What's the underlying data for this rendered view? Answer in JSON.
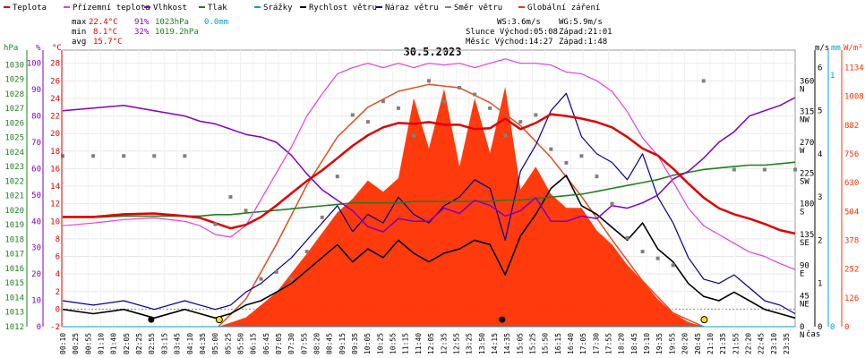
{
  "legend": [
    {
      "label": "Teplota",
      "color": "#e00000"
    },
    {
      "label": "Přízemní teplota",
      "color": "#e040e0"
    },
    {
      "label": "Vlhkost",
      "color": "#8000c0"
    },
    {
      "label": "Tlak",
      "color": "#208020"
    },
    {
      "label": "Srážky",
      "color": "#00a0d0"
    },
    {
      "label": "Rychlost větru",
      "color": "#000000"
    },
    {
      "label": "Náraz větru",
      "color": "#000090"
    },
    {
      "label": "Směr větru",
      "color": "#808080"
    },
    {
      "label": "Globální záření",
      "color": "#ff3000"
    }
  ],
  "stats": {
    "max": {
      "label": "max",
      "temp": "22.4°C",
      "hum": "91%",
      "press": "1023hPa",
      "rain": "0.0mm"
    },
    "min": {
      "label": "min",
      "temp": "8.1°C",
      "hum": "32%",
      "press": "1019.2hPa"
    },
    "avg": {
      "label": "avg",
      "temp": "15.7°C"
    }
  },
  "info": {
    "ws": "WS:3.6m/s",
    "wg": "WG:5.9m/s",
    "sun": "Slunce Východ:05:08",
    "sunset": "Západ:21:01",
    "moon": "Měsíc Východ:14:27",
    "moonset": "Západ:1:48"
  },
  "colors": {
    "temp": "#e00000",
    "dew": "#e040e0",
    "hum": "#8000c0",
    "press": "#208020",
    "rain": "#00a0d0",
    "wind": "#000000",
    "gust": "#000090",
    "dir": "#808080",
    "solar": "#ff3000",
    "solar_max": "#e05020"
  },
  "axes": {
    "hpa_unit": "hPa",
    "pct_unit": "%",
    "c_unit": "°C",
    "ms_unit": "m/s",
    "mm_unit": "mm",
    "wm2_unit": "W/m²",
    "time_label": "čas"
  },
  "chart_data": {
    "type": "line",
    "title": "30.5.2023",
    "x_labels": [
      "00:10",
      "00:25",
      "00:55",
      "01:10",
      "01:40",
      "02:05",
      "02:25",
      "02:55",
      "03:15",
      "03:45",
      "04:10",
      "04:35",
      "05:00",
      "05:25",
      "05:50",
      "06:15",
      "06:45",
      "07:05",
      "07:30",
      "07:55",
      "08:20",
      "08:45",
      "09:15",
      "09:35",
      "10:05",
      "10:25",
      "10:55",
      "11:15",
      "11:40",
      "12:05",
      "12:35",
      "12:55",
      "13:25",
      "13:50",
      "14:15",
      "14:35",
      "15:05",
      "15:25",
      "15:50",
      "16:15",
      "16:40",
      "17:05",
      "17:30",
      "17:55",
      "18:20",
      "18:45",
      "19:10",
      "19:35",
      "19:55",
      "20:20",
      "20:45",
      "21:10",
      "21:35",
      "21:55",
      "22:20",
      "22:45",
      "23:10",
      "23:35"
    ],
    "axes_ticks": {
      "hpa": [
        1012,
        1013,
        1014,
        1015,
        1016,
        1017,
        1018,
        1019,
        1020,
        1021,
        1022,
        1023,
        1024,
        1025,
        1026,
        1027,
        1028,
        1029,
        1030
      ],
      "pct": [
        0,
        10,
        20,
        30,
        40,
        50,
        60,
        70,
        80,
        90,
        100
      ],
      "celsius": [
        -2,
        0,
        2,
        4,
        6,
        8,
        10,
        12,
        14,
        16,
        18,
        20,
        22,
        24,
        26,
        28
      ],
      "direction_deg": [
        0,
        45,
        90,
        135,
        180,
        225,
        270,
        315,
        360
      ],
      "direction_labels": [
        "N",
        "NE",
        "E",
        "SE",
        "S",
        "SW",
        "W",
        "NW",
        "N"
      ],
      "ms": [
        0,
        1,
        2,
        3,
        4,
        5,
        6
      ],
      "mm": [
        0,
        1
      ],
      "wm2": [
        0,
        126,
        252,
        378,
        504,
        630,
        756,
        882,
        1008,
        1134
      ]
    },
    "series": [
      {
        "name": "Teplota",
        "unit": "°C",
        "x": [
          0,
          1,
          2,
          3,
          4,
          4.5,
          5,
          5.5,
          6,
          6.5,
          7,
          7.5,
          8,
          8.5,
          9,
          9.5,
          10,
          10.5,
          11,
          11.5,
          12,
          12.5,
          13,
          13.5,
          14,
          14.5,
          15,
          15.5,
          16,
          16.5,
          17,
          17.5,
          18,
          18.5,
          19,
          19.5,
          20,
          20.5,
          21,
          21.5,
          22,
          22.5,
          23,
          23.5,
          24
        ],
        "y": [
          10.5,
          10.5,
          10.8,
          10.9,
          10.6,
          10.4,
          9.8,
          9.2,
          9.6,
          10.5,
          11.8,
          13.2,
          14.6,
          15.8,
          17.2,
          18.6,
          19.8,
          20.7,
          21.2,
          21.1,
          21.3,
          21.0,
          21.0,
          20.5,
          20.6,
          21.7,
          20.5,
          21.2,
          22.2,
          22.0,
          21.7,
          21.3,
          20.7,
          19.6,
          18.3,
          17.5,
          16.0,
          14.3,
          12.7,
          11.5,
          10.8,
          10.3,
          9.7,
          9.0,
          8.6
        ]
      },
      {
        "name": "Přízemní teplota",
        "unit": "°C",
        "x": [
          0,
          1,
          2,
          3,
          4,
          4.5,
          5,
          5.5,
          6,
          6.5,
          7,
          7.5,
          8,
          8.5,
          9,
          9.5,
          10,
          10.5,
          11,
          11.5,
          12,
          12.5,
          13,
          13.5,
          14,
          14.5,
          15,
          15.5,
          16,
          16.5,
          17,
          17.5,
          18,
          18.5,
          19,
          19.5,
          20,
          20.5,
          21,
          21.5,
          22,
          22.5,
          23,
          23.5,
          24
        ],
        "y": [
          9.5,
          9.8,
          10.2,
          10.4,
          10.0,
          9.5,
          8.5,
          8.2,
          9.5,
          12.5,
          15.5,
          18.5,
          22.0,
          24.5,
          26.8,
          27.5,
          28.0,
          27.5,
          28.0,
          27.5,
          28.0,
          27.8,
          28.0,
          27.5,
          28.0,
          28.5,
          28.0,
          28.0,
          27.8,
          27.0,
          26.8,
          26.0,
          24.8,
          22.5,
          19.5,
          17.5,
          14.5,
          11.5,
          9.5,
          8.5,
          7.5,
          6.5,
          6.0,
          5.2,
          4.5
        ]
      },
      {
        "name": "Vlhkost",
        "unit": "%",
        "x": [
          0,
          1,
          2,
          3,
          4,
          4.5,
          5,
          5.5,
          6,
          6.5,
          7,
          7.5,
          8,
          8.5,
          9,
          9.5,
          10,
          10.5,
          11,
          11.5,
          12,
          12.5,
          13,
          13.5,
          14,
          14.5,
          15,
          15.5,
          16,
          16.5,
          17,
          17.5,
          18,
          18.5,
          19,
          19.5,
          20,
          20.5,
          21,
          21.5,
          22,
          22.5,
          23,
          23.5,
          24
        ],
        "y": [
          82,
          83,
          84,
          82,
          80,
          78,
          77,
          75,
          73,
          72,
          70,
          65,
          58,
          52,
          48,
          44,
          38,
          36,
          41,
          40,
          40,
          45,
          43,
          48,
          46,
          42,
          44,
          49,
          40,
          40,
          42,
          41,
          46,
          45,
          47,
          50,
          56,
          59,
          64,
          70,
          74,
          80,
          82,
          84,
          87
        ]
      },
      {
        "name": "Tlak",
        "unit": "hPa",
        "x": [
          0,
          1,
          2,
          3,
          4,
          4.5,
          5,
          5.5,
          6,
          6.5,
          7,
          7.5,
          8,
          8.5,
          9,
          9.5,
          10,
          10.5,
          11,
          11.5,
          12,
          12.5,
          13,
          13.5,
          14,
          14.5,
          15,
          15.5,
          16,
          16.5,
          17,
          17.5,
          18,
          18.5,
          19,
          19.5,
          20,
          20.5,
          21,
          21.5,
          22,
          22.5,
          23,
          23.5,
          24
        ],
        "y": [
          1019.5,
          1019.5,
          1019.6,
          1019.6,
          1019.6,
          1019.6,
          1019.7,
          1019.7,
          1019.8,
          1019.9,
          1020.0,
          1020.1,
          1020.2,
          1020.3,
          1020.4,
          1020.5,
          1020.5,
          1020.5,
          1020.5,
          1020.6,
          1020.6,
          1020.6,
          1020.6,
          1020.6,
          1020.6,
          1020.7,
          1020.7,
          1020.8,
          1020.9,
          1021.0,
          1021.1,
          1021.3,
          1021.5,
          1021.7,
          1021.9,
          1022.1,
          1022.4,
          1022.6,
          1022.8,
          1022.9,
          1023.0,
          1023.1,
          1023.1,
          1023.2,
          1023.3
        ]
      },
      {
        "name": "Srážky",
        "unit": "mm",
        "x": [
          0,
          24
        ],
        "y": [
          0,
          0
        ]
      },
      {
        "name": "Rychlost větru",
        "unit": "m/s",
        "x": [
          0,
          1,
          2,
          3,
          4,
          4.5,
          5,
          5.5,
          6,
          6.5,
          7,
          7.5,
          8,
          8.5,
          9,
          9.5,
          10,
          10.5,
          11,
          11.5,
          12,
          12.5,
          13,
          13.5,
          14,
          14.5,
          15,
          15.5,
          16,
          16.5,
          17,
          17.5,
          18,
          18.5,
          19,
          19.5,
          20,
          20.5,
          21,
          21.5,
          22,
          22.5,
          23,
          23.5,
          24
        ],
        "y": [
          0.4,
          0.3,
          0.4,
          0.2,
          0.4,
          0.3,
          0.2,
          0.3,
          0.5,
          0.6,
          0.8,
          1.0,
          1.3,
          1.6,
          1.9,
          1.5,
          1.8,
          1.6,
          2.0,
          1.7,
          1.5,
          1.7,
          1.8,
          2.0,
          1.9,
          1.2,
          2.1,
          2.6,
          3.2,
          3.5,
          2.8,
          2.6,
          2.3,
          2.0,
          2.4,
          1.8,
          1.5,
          1.0,
          0.7,
          0.6,
          0.8,
          0.6,
          0.4,
          0.3,
          0.2
        ]
      },
      {
        "name": "Náraz větru",
        "unit": "m/s",
        "x": [
          0,
          1,
          2,
          3,
          4,
          4.5,
          5,
          5.5,
          6,
          6.5,
          7,
          7.5,
          8,
          8.5,
          9,
          9.5,
          10,
          10.5,
          11,
          11.5,
          12,
          12.5,
          13,
          13.5,
          14,
          14.5,
          15,
          15.5,
          16,
          16.5,
          17,
          17.5,
          18,
          18.5,
          19,
          19.5,
          20,
          20.5,
          21,
          21.5,
          22,
          22.5,
          23,
          23.5,
          24
        ],
        "y": [
          0.6,
          0.5,
          0.6,
          0.4,
          0.6,
          0.5,
          0.4,
          0.5,
          0.8,
          1.0,
          1.3,
          1.6,
          2.0,
          2.4,
          2.8,
          2.2,
          2.6,
          2.4,
          3.0,
          2.6,
          2.4,
          2.8,
          3.0,
          3.4,
          3.2,
          2.0,
          3.6,
          4.2,
          5.0,
          5.4,
          4.4,
          4.0,
          3.8,
          3.4,
          4.0,
          3.0,
          2.4,
          1.6,
          1.1,
          1.0,
          1.2,
          0.9,
          0.6,
          0.5,
          0.3
        ]
      },
      {
        "name": "Směr větru",
        "unit": "°",
        "x": [
          0,
          1,
          2,
          3,
          4,
          5,
          5.5,
          6,
          6.5,
          7,
          7.5,
          8,
          8.5,
          9,
          9.5,
          10,
          10.5,
          11,
          11.5,
          12,
          12.5,
          13,
          13.5,
          14,
          14.5,
          15,
          15.5,
          16,
          16.5,
          17,
          17.5,
          18,
          18.5,
          19,
          19.5,
          20,
          21,
          22,
          23,
          24
        ],
        "y": [
          250,
          250,
          250,
          250,
          250,
          150,
          190,
          170,
          70,
          80,
          70,
          110,
          160,
          220,
          310,
          300,
          330,
          320,
          280,
          360,
          330,
          350,
          340,
          320,
          280,
          300,
          310,
          260,
          240,
          250,
          220,
          180,
          130,
          110,
          100,
          90,
          360,
          230,
          230,
          230
        ]
      },
      {
        "name": "Globální záření",
        "unit": "W/m²",
        "x": [
          5.1,
          6,
          7,
          8,
          9,
          9.5,
          10,
          10.5,
          11,
          11.5,
          12,
          12.5,
          13,
          13.5,
          14,
          14.5,
          15,
          15.5,
          16,
          16.5,
          17,
          17.5,
          18,
          18.5,
          19,
          19.5,
          20,
          20.5,
          21
        ],
        "y": [
          0,
          40,
          150,
          320,
          500,
          560,
          640,
          590,
          650,
          1000,
          780,
          1040,
          700,
          1000,
          760,
          1050,
          600,
          700,
          580,
          520,
          520,
          420,
          360,
          270,
          200,
          120,
          60,
          20,
          0
        ]
      },
      {
        "name": "Globální záření (max)",
        "unit": "W/m²",
        "x": [
          5.1,
          6,
          7,
          8,
          9,
          10,
          11,
          12,
          13,
          14,
          15,
          16,
          17,
          18,
          19,
          20,
          21
        ],
        "y": [
          0,
          120,
          360,
          620,
          830,
          960,
          1030,
          1060,
          1045,
          980,
          880,
          740,
          570,
          380,
          200,
          60,
          0
        ]
      }
    ]
  }
}
